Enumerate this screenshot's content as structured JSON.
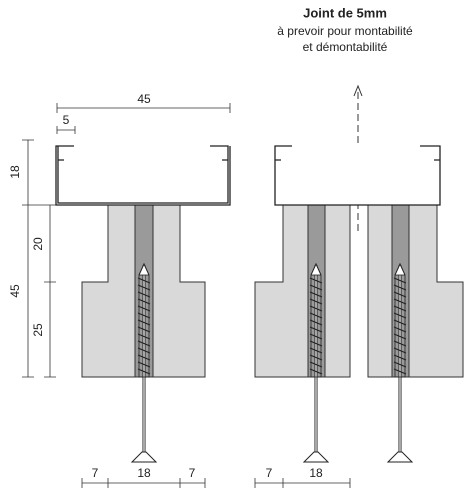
{
  "note": {
    "title": "Joint de 5mm",
    "line1": "à prevoir pour montabilité",
    "line2": "et démontabilité"
  },
  "dimensions": {
    "profile_width": "45",
    "lip": "5",
    "profile_height": "18",
    "upper_height": "20",
    "block_height": "45",
    "lower_height": "25",
    "left_side": "7",
    "left_core": "18",
    "left_side2": "7",
    "right_side": "7",
    "right_core": "18"
  }
}
